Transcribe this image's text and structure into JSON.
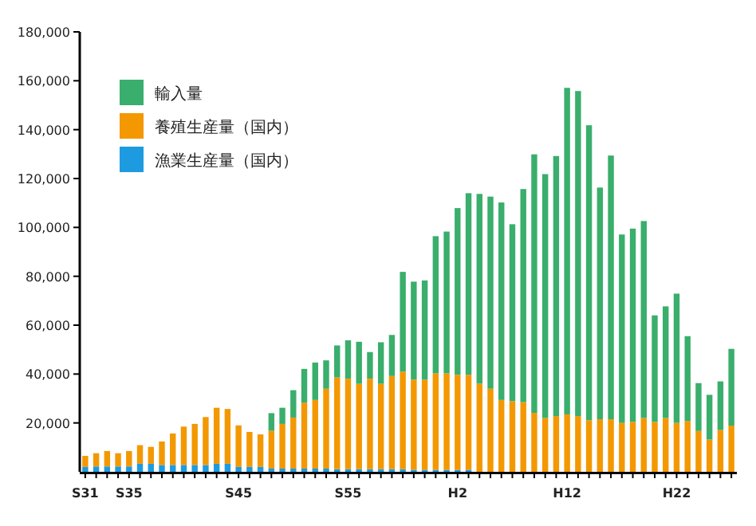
{
  "chart_data": {
    "type": "bar",
    "stacked": true,
    "legend": "top left",
    "categories": [
      "S31",
      null,
      null,
      null,
      "S35",
      null,
      null,
      null,
      null,
      null,
      null,
      null,
      null,
      null,
      "S45",
      null,
      null,
      null,
      null,
      null,
      null,
      null,
      null,
      null,
      "S55",
      null,
      null,
      null,
      null,
      null,
      null,
      null,
      null,
      null,
      "H2",
      null,
      null,
      null,
      null,
      null,
      null,
      null,
      null,
      null,
      "H12",
      null,
      null,
      null,
      null,
      null,
      null,
      null,
      null,
      null,
      "H22",
      null,
      null,
      null,
      null,
      null
    ],
    "ylim": [
      0,
      180000
    ],
    "yticks": [
      {
        "value": 20000,
        "label": "20,000"
      },
      {
        "value": 40000,
        "label": "40,000"
      },
      {
        "value": 60000,
        "label": "60,000"
      },
      {
        "value": 80000,
        "label": "80,000"
      },
      {
        "value": 100000,
        "label": "100,000"
      },
      {
        "value": 120000,
        "label": "120,000"
      },
      {
        "value": 140000,
        "label": "140,000"
      },
      {
        "value": 160000,
        "label": "160,000"
      },
      {
        "value": 180000,
        "label": "180,000"
      }
    ],
    "series": [
      {
        "name": "漁業生産量（国内）",
        "color": "#1e9be0",
        "values": [
          2000,
          2200,
          2200,
          2200,
          2200,
          3300,
          3300,
          2800,
          2800,
          2800,
          2800,
          2800,
          3300,
          3300,
          2000,
          2000,
          2000,
          1300,
          1300,
          1300,
          1300,
          1300,
          1300,
          1100,
          1100,
          1100,
          1100,
          1100,
          1100,
          1100,
          800,
          800,
          800,
          800,
          800,
          800,
          null,
          null,
          null,
          null,
          null,
          null,
          null,
          null,
          null,
          null,
          null,
          null,
          null,
          null,
          null,
          null,
          null,
          null,
          null,
          null,
          null,
          null,
          null,
          null
        ]
      },
      {
        "name": "養殖生産量（国内）",
        "color": "#f39800",
        "values": [
          4500,
          5400,
          6300,
          5400,
          6300,
          7600,
          6900,
          9600,
          12900,
          15700,
          16800,
          19600,
          22900,
          22400,
          17000,
          14300,
          13300,
          15500,
          18300,
          20900,
          27000,
          28100,
          32700,
          37500,
          37000,
          34900,
          37000,
          34900,
          38100,
          39900,
          36900,
          36900,
          39500,
          39500,
          38900,
          38900,
          36100,
          34000,
          29400,
          28900,
          28500,
          24100,
          22000,
          22800,
          23500,
          22800,
          21100,
          21500,
          21500,
          20000,
          20400,
          22000,
          20400,
          22000,
          20000,
          20800,
          16700,
          13200,
          17100,
          18900
        ]
      },
      {
        "name": "輸入量",
        "color": "#3aae6c",
        "values": [
          0,
          0,
          0,
          0,
          0,
          0,
          0,
          0,
          0,
          0,
          0,
          0,
          0,
          0,
          0,
          0,
          0,
          7200,
          6600,
          11200,
          13800,
          15300,
          11600,
          13100,
          15700,
          17200,
          10900,
          17000,
          16800,
          40800,
          40100,
          40600,
          56100,
          58000,
          68200,
          74300,
          77600,
          78600,
          80800,
          72400,
          87200,
          105800,
          99800,
          106400,
          133600,
          133000,
          120700,
          94800,
          107900,
          77100,
          79100,
          80600,
          43600,
          45700,
          52900,
          34700,
          19600,
          18300,
          19900,
          31400
        ]
      }
    ]
  }
}
